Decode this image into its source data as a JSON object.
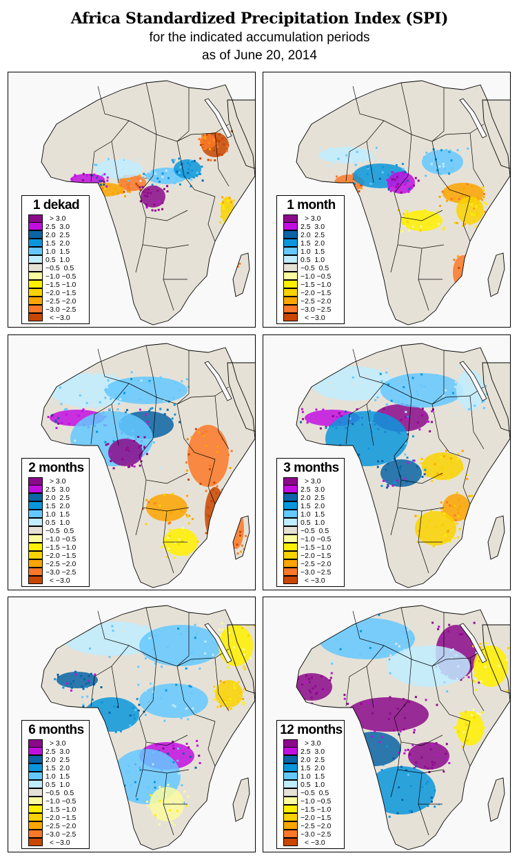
{
  "title": {
    "main": "Africa Standardized Precipitation Index (SPI)",
    "line1": "for the indicated accumulation periods",
    "line2": "as of June 20, 2014"
  },
  "colors": {
    "ocean": "#f9f9f9",
    "land_near_normal": "#e6e1d6",
    "border": "#000000"
  },
  "legend": {
    "bins": [
      {
        "label": "  > 3.0",
        "color": "#8b0a8b"
      },
      {
        "label": "2.5  3.0",
        "color": "#c10fe0"
      },
      {
        "label": "2.0  2.5",
        "color": "#0a64a5"
      },
      {
        "label": "1.5  2.0",
        "color": "#0a96dc"
      },
      {
        "label": "1.0  1.5",
        "color": "#64c8ff"
      },
      {
        "label": "0.5  1.0",
        "color": "#c0ecff"
      },
      {
        "label": "−0.5  0.5",
        "color": "#e6e1d6"
      },
      {
        "label": "−1.0 −0.5",
        "color": "#fafaa0"
      },
      {
        "label": "−1.5 −1.0",
        "color": "#fff000"
      },
      {
        "label": "−2.0 −1.5",
        "color": "#fad200"
      },
      {
        "label": "−2.5 −2.0",
        "color": "#faa500"
      },
      {
        "label": "−3.0 −2.5",
        "color": "#fa7828"
      },
      {
        "label": "  < −3.0",
        "color": "#c84600"
      }
    ]
  },
  "chart_data": [
    {
      "type": "heatmap",
      "title": "1 dekad",
      "variable": "SPI",
      "categories": [
        "> 3.0",
        "2.5 3.0",
        "2.0 2.5",
        "1.5 2.0",
        "1.0 1.5",
        "0.5 1.0",
        "-0.5 0.5",
        "-1.0 -0.5",
        "-1.5 -1.0",
        "-2.0 -1.5",
        "-2.5 -2.0",
        "-3.0 -2.5",
        "< -3.0"
      ],
      "dominant": "near normal",
      "notable": [
        "dry: Nigeria coast, Ethiopia, east Madagascar, Kenya coast",
        "wet: Cameroon, Congo basin, Sahel patches"
      ]
    },
    {
      "title": "1 month",
      "type": "heatmap",
      "dominant": "near normal",
      "notable": [
        "wet: Guinea coast, Congo basin",
        "dry: Tanzania, Mozambique coast, Ethiopia"
      ]
    },
    {
      "title": "2 months",
      "type": "heatmap",
      "dominant": "mixed wet",
      "notable": [
        "wet: West Africa, Central Africa",
        "dry: East Africa, Madagascar, Mozambique"
      ]
    },
    {
      "title": "3 months",
      "type": "heatmap",
      "dominant": "mixed wet",
      "notable": [
        "wet: West & Central Africa",
        "dry: Tanzania, Kenya"
      ]
    },
    {
      "title": "6 months",
      "type": "heatmap",
      "dominant": "wet",
      "notable": [
        "wet: Congo, Zambia, Sahara",
        "dry: Arabian peninsula, Somalia"
      ]
    },
    {
      "title": "12 months",
      "type": "heatmap",
      "dominant": "wet",
      "notable": [
        "very wet: Central Africa, Guinea, Egypt/Sudan",
        "dry: Kenya, Arabia"
      ]
    }
  ],
  "panels": [
    {
      "label": "1 dekad"
    },
    {
      "label": "1 month"
    },
    {
      "label": "2 months"
    },
    {
      "label": "3 months"
    },
    {
      "label": "6 months"
    },
    {
      "label": "12 months"
    }
  ]
}
